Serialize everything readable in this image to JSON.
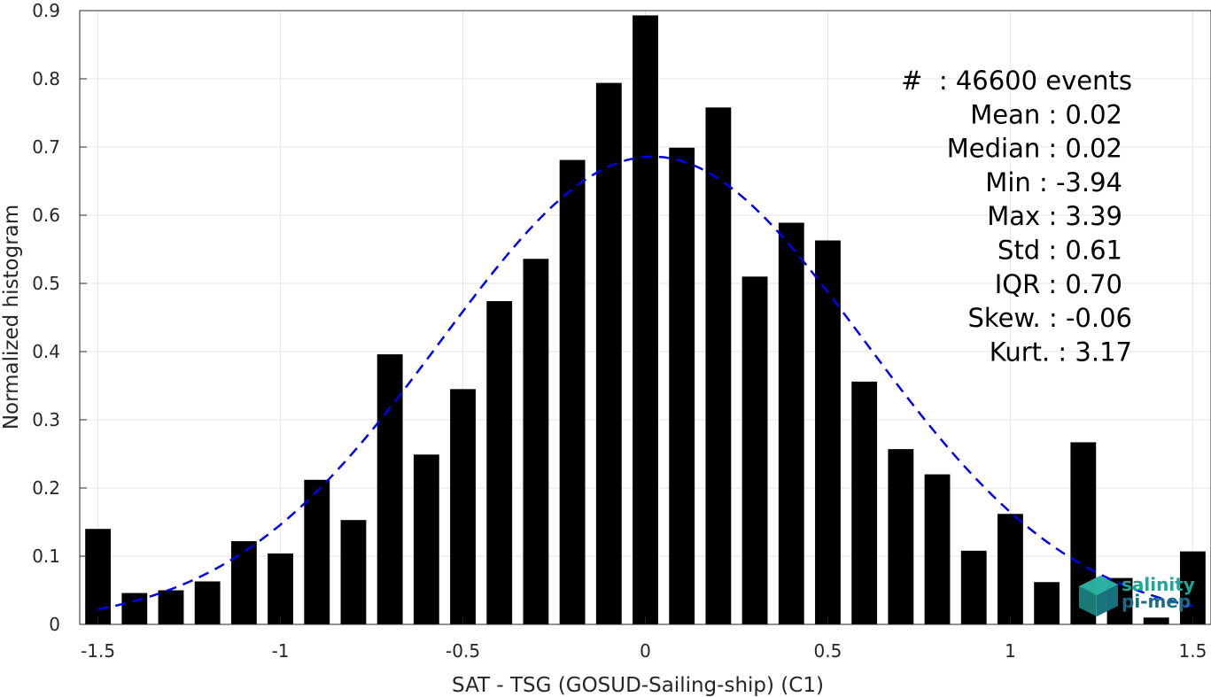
{
  "chart_data": {
    "type": "bar",
    "xlabel": "SAT - TSG (GOSUD-Sailing-ship) (C1)",
    "ylabel": "Normalized histogram",
    "xlim": [
      -1.55,
      1.55
    ],
    "ylim": [
      0,
      0.9
    ],
    "xticks": [
      -1.5,
      -1,
      -0.5,
      0,
      0.5,
      1,
      1.5
    ],
    "xtick_labels": [
      "-1.5",
      "-1",
      "-0.5",
      "0",
      "0.5",
      "1",
      "1.5"
    ],
    "yticks": [
      0,
      0.1,
      0.2,
      0.3,
      0.4,
      0.5,
      0.6,
      0.7,
      0.8,
      0.9
    ],
    "ytick_labels": [
      "0",
      "0.1",
      "0.2",
      "0.3",
      "0.4",
      "0.5",
      "0.6",
      "0.7",
      "0.8",
      "0.9"
    ],
    "grid": true,
    "bar_color": "#000000",
    "bar_width": 0.07,
    "bins": [
      -1.5,
      -1.4,
      -1.3,
      -1.2,
      -1.1,
      -1.0,
      -0.9,
      -0.8,
      -0.7,
      -0.6,
      -0.5,
      -0.4,
      -0.3,
      -0.2,
      -0.1,
      0.0,
      0.1,
      0.2,
      0.3,
      0.4,
      0.5,
      0.6,
      0.7,
      0.8,
      0.9,
      1.0,
      1.1,
      1.2,
      1.3,
      1.4,
      1.5
    ],
    "values": [
      0.14,
      0.046,
      0.05,
      0.063,
      0.122,
      0.104,
      0.212,
      0.153,
      0.396,
      0.249,
      0.345,
      0.474,
      0.536,
      0.681,
      0.794,
      0.893,
      0.699,
      0.758,
      0.51,
      0.589,
      0.563,
      0.356,
      0.257,
      0.22,
      0.108,
      0.162,
      0.062,
      0.267,
      0.068,
      0.01,
      0.107
    ],
    "fit_curve": {
      "type": "gaussian",
      "mean": 0.02,
      "std": 0.58,
      "peak": 0.686,
      "color": "#0000ee",
      "style": "dashed",
      "x_range": [
        -1.5,
        1.5
      ]
    },
    "stats": [
      {
        "label": "#  : 46600 events"
      },
      {
        "label": "Mean : 0.02"
      },
      {
        "label": "Median : 0.02"
      },
      {
        "label": "Min : -3.94"
      },
      {
        "label": "Max : 3.39"
      },
      {
        "label": "Std : 0.61"
      },
      {
        "label": "IQR : 0.70"
      },
      {
        "label": "Skew. : -0.06"
      },
      {
        "label": "Kurt. : 3.17"
      }
    ]
  },
  "logo": {
    "line1": "salinity",
    "line2": "pi-mep",
    "color1": "#1aa89a",
    "color2": "#1a6c86"
  }
}
